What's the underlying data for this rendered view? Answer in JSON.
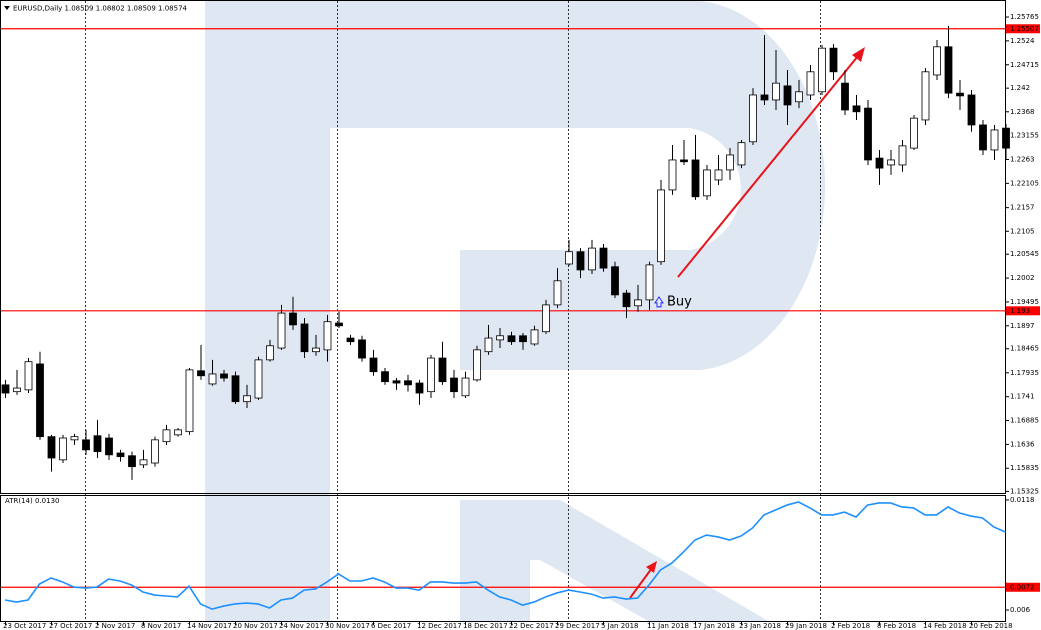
{
  "chart_data": [
    {
      "type": "candlestick",
      "title": "EURUSD,Daily  1.08509 1.08802 1.08509 1.08574",
      "categories": [
        "23 Oct 2017",
        null,
        null,
        null,
        "27 Oct 2017",
        null,
        null,
        null,
        "2 Nov 2017",
        null,
        null,
        null,
        "8 Nov 2017",
        null,
        null,
        null,
        "14 Nov 2017",
        null,
        null,
        null,
        "20 Nov 2017",
        null,
        null,
        null,
        "24 Nov 2017",
        null,
        null,
        null,
        "30 Nov 2017",
        null,
        null,
        null,
        "6 Dec 2017",
        null,
        null,
        null,
        "12 Dec 2017",
        null,
        null,
        null,
        "18 Dec 2017",
        null,
        null,
        null,
        "22 Dec 2017",
        null,
        null,
        null,
        "29 Dec 2017",
        null,
        null,
        null,
        "5 Jan 2018",
        null,
        null,
        null,
        "11 Jan 2018",
        null,
        null,
        null,
        "17 Jan 2018",
        null,
        null,
        null,
        "23 Jan 2018",
        null,
        null,
        null,
        "29 Jan 2018",
        null,
        null,
        null,
        "2 Feb 2018",
        null,
        null,
        null,
        "8 Feb 2018",
        null,
        null,
        null,
        "14 Feb 2018",
        null,
        null,
        null,
        "20 Feb 2018",
        null,
        null,
        null
      ],
      "open": [
        1.1767,
        1.1752,
        1.1756,
        1.1813,
        1.1653,
        1.1602,
        1.1646,
        1.1646,
        1.1655,
        1.165,
        1.1617,
        1.1611,
        1.1591,
        1.1595,
        1.1642,
        1.1657,
        1.1664,
        1.1798,
        1.1769,
        1.1791,
        1.1787,
        1.173,
        1.1738,
        1.1822,
        1.1848,
        1.1925,
        1.1901,
        1.184,
        1.1844,
        1.1903,
        1.187,
        1.1866,
        1.1826,
        1.1796,
        1.1776,
        1.1776,
        1.1771,
        1.1752,
        1.1826,
        1.1782,
        1.1743,
        1.1778,
        1.184,
        1.1866,
        1.1875,
        1.1875,
        1.1857,
        1.1884,
        1.1943,
        1.2033,
        1.206,
        1.202,
        1.2068,
        1.2027,
        1.1969,
        1.1941,
        1.1954,
        1.2038,
        1.2196,
        1.2262,
        1.2262,
        1.2183,
        1.2218,
        1.224,
        1.2251,
        1.2302,
        1.2405,
        1.2394,
        1.2425,
        1.239,
        1.2405,
        1.2412,
        1.2508,
        1.2431,
        1.2381,
        1.2376,
        1.2266,
        1.2251,
        1.2251,
        1.2288,
        1.235,
        1.2449,
        1.2511,
        1.2409,
        1.2405,
        1.2339,
        1.2284,
        1.2332
      ],
      "high": [
        1.1778,
        1.18,
        1.1826,
        1.184,
        1.1657,
        1.1657,
        1.1659,
        1.1668,
        1.169,
        1.1659,
        1.1624,
        1.162,
        1.1624,
        1.1653,
        1.1679,
        1.1672,
        1.1804,
        1.1855,
        1.1822,
        1.18,
        1.1796,
        1.1767,
        1.1829,
        1.1866,
        1.1943,
        1.1961,
        1.1914,
        1.1877,
        1.1921,
        1.1928,
        1.1877,
        1.1875,
        1.1844,
        1.1804,
        1.1782,
        1.1789,
        1.1778,
        1.1833,
        1.1862,
        1.18,
        1.1796,
        1.1853,
        1.1899,
        1.1892,
        1.1884,
        1.1881,
        1.1897,
        1.1954,
        1.2024,
        1.2086,
        1.2068,
        1.2086,
        1.2077,
        1.2038,
        1.1976,
        1.1987,
        1.2038,
        1.2218,
        1.2295,
        1.2306,
        1.2317,
        1.2251,
        1.2273,
        1.2288,
        1.2306,
        1.242,
        1.2537,
        1.2504,
        1.246,
        1.2438,
        1.2471,
        1.2515,
        1.2517,
        1.246,
        1.2405,
        1.2394,
        1.2284,
        1.2284,
        1.2306,
        1.2361,
        1.2464,
        1.2526,
        1.2557,
        1.2438,
        1.2416,
        1.235,
        1.2339,
        1.2341
      ],
      "low": [
        1.1738,
        1.1745,
        1.1749,
        1.1646,
        1.1576,
        1.1595,
        1.1635,
        1.1613,
        1.1606,
        1.1602,
        1.1598,
        1.1558,
        1.1584,
        1.1587,
        1.1635,
        1.1653,
        1.1657,
        1.1778,
        1.1765,
        1.1774,
        1.1725,
        1.1716,
        1.1734,
        1.1818,
        1.1844,
        1.1888,
        1.1826,
        1.1831,
        1.1818,
        1.1892,
        1.1855,
        1.1818,
        1.1787,
        1.1767,
        1.1756,
        1.1752,
        1.1723,
        1.1738,
        1.1767,
        1.1738,
        1.1738,
        1.1774,
        1.1833,
        1.1848,
        1.1855,
        1.1844,
        1.1853,
        1.1879,
        1.1936,
        1.2029,
        1.2002,
        1.2011,
        1.2016,
        1.1958,
        1.1914,
        1.1928,
        1.1932,
        1.2031,
        1.2185,
        1.2251,
        1.2174,
        1.2174,
        1.2207,
        1.2218,
        1.2244,
        1.2295,
        1.2383,
        1.2372,
        1.2339,
        1.2376,
        1.2394,
        1.2405,
        1.2438,
        1.2361,
        1.235,
        1.2251,
        1.2207,
        1.2229,
        1.2236,
        1.2284,
        1.2339,
        1.2438,
        1.2398,
        1.2372,
        1.2324,
        1.2273,
        1.2262,
        1.2262
      ],
      "close": [
        1.1749,
        1.176,
        1.1818,
        1.1653,
        1.1606,
        1.165,
        1.1653,
        1.1624,
        1.162,
        1.1613,
        1.1609,
        1.1587,
        1.1602,
        1.1646,
        1.1668,
        1.1668,
        1.18,
        1.1787,
        1.1791,
        1.1782,
        1.173,
        1.1743,
        1.1822,
        1.1853,
        1.1925,
        1.1899,
        1.184,
        1.1848,
        1.1906,
        1.1897,
        1.1862,
        1.1826,
        1.1796,
        1.1774,
        1.1771,
        1.1767,
        1.1749,
        1.1826,
        1.1774,
        1.1752,
        1.1782,
        1.1844,
        1.187,
        1.1875,
        1.1862,
        1.1862,
        1.1888,
        1.1943,
        1.1996,
        1.206,
        1.202,
        1.2068,
        1.2024,
        1.1965,
        1.1939,
        1.1954,
        1.2031,
        1.2196,
        1.2262,
        1.2258,
        1.2181,
        1.224,
        1.224,
        1.2273,
        1.23,
        1.2405,
        1.2394,
        1.2431,
        1.2383,
        1.2412,
        1.2456,
        1.2508,
        1.2456,
        1.2372,
        1.2368,
        1.2262,
        1.2244,
        1.2262,
        1.2293,
        1.2354,
        1.2456,
        1.2511,
        1.2409,
        1.2403,
        1.2339,
        1.2284,
        1.2328,
        1.2288
      ],
      "up_color": "#ffffff",
      "down_color": "#000000",
      "ylim": [
        1.1529,
        1.2603
      ],
      "yticks": [
        1.25765,
        1.2524,
        1.24715,
        1.242,
        1.2368,
        1.23155,
        1.2263,
        1.22105,
        1.2157,
        1.2105,
        1.20545,
        1.2002,
        1.19495,
        1.1897,
        1.18465,
        1.17935,
        1.1741,
        1.16885,
        1.1636,
        1.15835,
        1.15325
      ],
      "levels": [
        1.25507,
        1.193
      ],
      "level_color": "#ff0000",
      "annotation": "Buy",
      "annotation_color": "#1a1aff"
    },
    {
      "type": "line",
      "title": "ATR(14) 0.0130",
      "series": [
        {
          "name": "ATR(14)",
          "color": "#1e90ff",
          "values": [
            0.00653,
            0.00642,
            0.00653,
            0.00737,
            0.00769,
            0.00748,
            0.00721,
            0.00716,
            0.00721,
            0.00763,
            0.00753,
            0.00732,
            0.00695,
            0.00679,
            0.00674,
            0.00669,
            0.00726,
            0.00632,
            0.00605,
            0.00621,
            0.00632,
            0.00637,
            0.00632,
            0.00611,
            0.00653,
            0.00663,
            0.00705,
            0.00711,
            0.00748,
            0.0079,
            0.00753,
            0.00753,
            0.00769,
            0.00748,
            0.00716,
            0.00716,
            0.00705,
            0.00748,
            0.00748,
            0.00742,
            0.00742,
            0.00748,
            0.00705,
            0.00669,
            0.00653,
            0.00626,
            0.00642,
            0.00669,
            0.0069,
            0.00705,
            0.00695,
            0.00684,
            0.00663,
            0.00669,
            0.00658,
            0.00663,
            0.00732,
            0.00811,
            0.00848,
            0.00906,
            0.00969,
            0.00995,
            0.00985,
            0.00969,
            0.0099,
            0.01032,
            0.01101,
            0.01127,
            0.01153,
            0.01169,
            0.01138,
            0.01101,
            0.01101,
            0.01116,
            0.0109,
            0.01153,
            0.01164,
            0.01164,
            0.01143,
            0.01138,
            0.01101,
            0.01101,
            0.01143,
            0.01111,
            0.01095,
            0.01085,
            0.01037,
            0.01011
          ]
        }
      ],
      "ylim": [
        0.00537,
        0.01206
      ],
      "yticks": [
        0.0118,
        0.006
      ],
      "levels": [
        0.0072
      ],
      "level_color": "#ff0000"
    }
  ]
}
